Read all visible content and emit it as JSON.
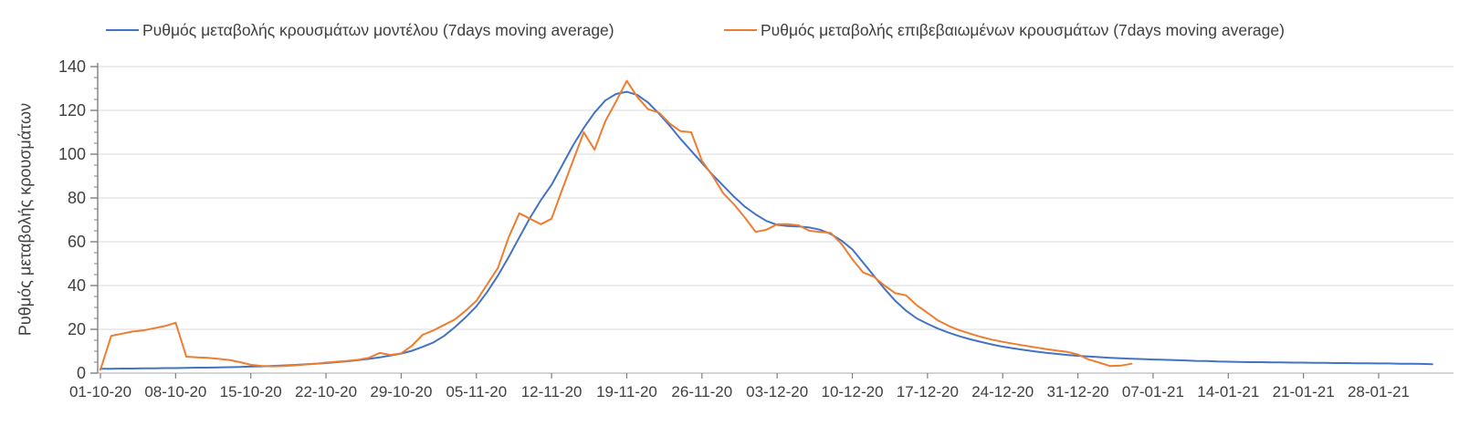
{
  "chart_data": {
    "type": "line",
    "title": "",
    "xlabel": "",
    "ylabel": "Ρυθμός μεταβολής κρουσμάτων",
    "ylim": [
      0,
      140
    ],
    "y_ticks": [
      0,
      20,
      40,
      60,
      80,
      100,
      120,
      140
    ],
    "y_minor_step": 5,
    "grid": "horizontal gridlines on, vertical off",
    "legend_position": "top",
    "x_tick_labels": [
      "01-10-20",
      "08-10-20",
      "15-10-20",
      "22-10-20",
      "29-10-20",
      "05-11-20",
      "12-11-20",
      "19-11-20",
      "26-11-20",
      "03-12-20",
      "10-12-20",
      "17-12-20",
      "24-12-20",
      "31-12-20",
      "07-01-21",
      "14-01-21",
      "21-01-21",
      "28-01-21"
    ],
    "x_tick_days": [
      0,
      7,
      14,
      21,
      28,
      35,
      42,
      49,
      56,
      63,
      70,
      77,
      84,
      91,
      98,
      105,
      112,
      119
    ],
    "x_unit": "days since 01-10-20, daily data points",
    "series": [
      {
        "name": "Ρυθμός μεταβολής κρουσμάτων μοντέλου (7days moving average)",
        "color": "#4472C4",
        "start_day": 0,
        "start_date": "01-10-20",
        "end_date": "02-02-21",
        "values": [
          2,
          2,
          2.1,
          2.1,
          2.2,
          2.2,
          2.3,
          2.3,
          2.4,
          2.5,
          2.5,
          2.6,
          2.7,
          2.8,
          3,
          3.1,
          3.3,
          3.5,
          3.7,
          4,
          4.3,
          4.6,
          5,
          5.4,
          5.9,
          6.5,
          7.2,
          8,
          8.9,
          10.2,
          12,
          14,
          17,
          21,
          25.5,
          30.5,
          37,
          44.5,
          53,
          62,
          71,
          79,
          86,
          95,
          104,
          112,
          119,
          124.5,
          127.5,
          128.5,
          127,
          123.5,
          118.5,
          113,
          107,
          101.5,
          96,
          90.5,
          85.5,
          80.5,
          76,
          72.5,
          69.5,
          67.7,
          67.2,
          67,
          66.5,
          65.5,
          63.5,
          60.5,
          56.5,
          50.5,
          44.5,
          38.5,
          33,
          28.5,
          25,
          22.5,
          20.3,
          18.4,
          16.8,
          15.4,
          14.2,
          13.1,
          12.1,
          11.3,
          10.6,
          9.9,
          9.3,
          8.8,
          8.3,
          7.9,
          7.6,
          7.3,
          7,
          6.8,
          6.6,
          6.4,
          6.2,
          6.1,
          5.9,
          5.8,
          5.6,
          5.5,
          5.3,
          5.2,
          5.1,
          5,
          5,
          4.9,
          4.9,
          4.8,
          4.8,
          4.7,
          4.7,
          4.6,
          4.6,
          4.5,
          4.5,
          4.4,
          4.4,
          4.3,
          4.3,
          4.2,
          4.1
        ]
      },
      {
        "name": "Ρυθμός μεταβολής επιβεβαιωμένων κρουσμάτων (7days moving average)",
        "color": "#ED7D31",
        "start_day": 0,
        "start_date": "01-10-20",
        "end_date": "05-01-21",
        "values": [
          1.5,
          17,
          18,
          19,
          19.5,
          20.5,
          21.5,
          23,
          7.5,
          7.2,
          7,
          6.5,
          6,
          5,
          3.8,
          3.3,
          3.1,
          3.2,
          3.5,
          3.9,
          4.3,
          4.8,
          5.2,
          5.6,
          6.1,
          7,
          9.2,
          8.3,
          9,
          12.5,
          17.5,
          19.5,
          22,
          24.5,
          28.5,
          33,
          40.5,
          48,
          62,
          73,
          70.5,
          68,
          70.5,
          84,
          97,
          110,
          102,
          115,
          124,
          133.5,
          126,
          120.5,
          119,
          114,
          110.5,
          110,
          97,
          90,
          82,
          77,
          71,
          64.5,
          65.5,
          68,
          68,
          67.5,
          65,
          64.5,
          64,
          59,
          52,
          46,
          44,
          40,
          36.5,
          35.5,
          31,
          27.5,
          24,
          21.5,
          19.5,
          18,
          16.5,
          15.3,
          14.3,
          13.4,
          12.6,
          11.8,
          11,
          10.3,
          9.7,
          8.5,
          6.2,
          4.8,
          3.2,
          3.4,
          4.3
        ]
      }
    ],
    "colors": {
      "model_line": "#4472C4",
      "confirmed_line": "#ED7D31",
      "gridline": "#d9d9d9",
      "axis": "#808080",
      "x_axis_line": "#c6c6c6",
      "text": "#404040"
    }
  }
}
